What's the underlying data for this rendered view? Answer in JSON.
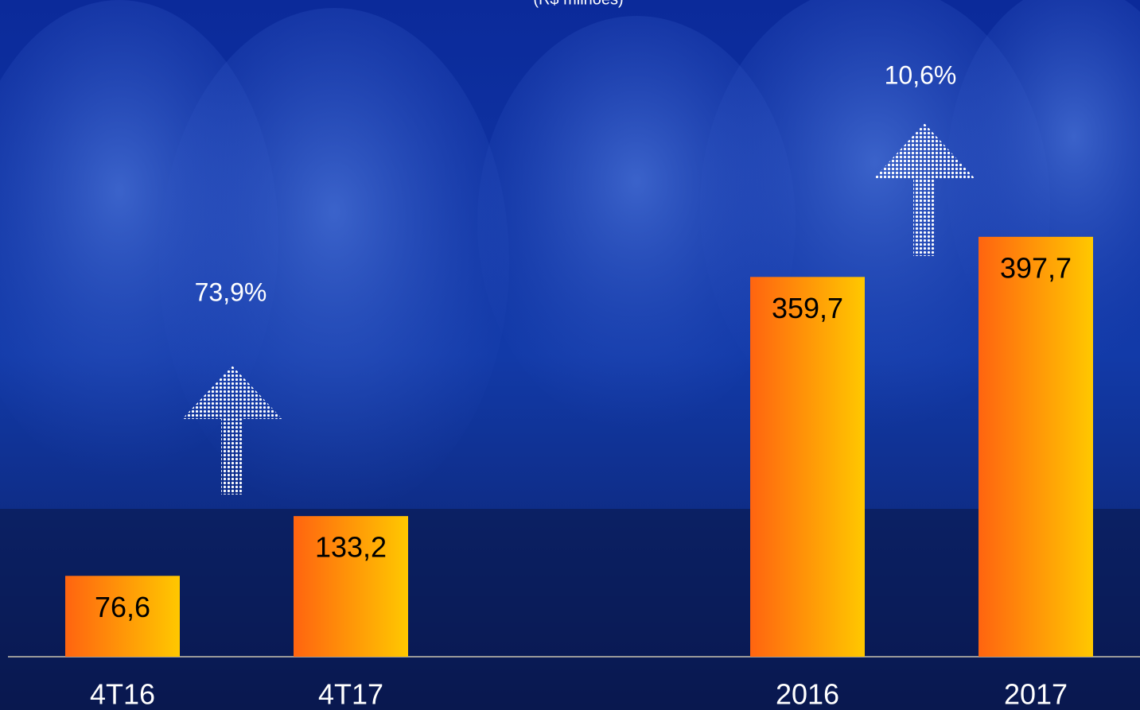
{
  "chart_data": {
    "type": "bar",
    "subtitle": "(R$ milhões)",
    "categories": [
      "4T16",
      "4T17",
      null,
      "2016",
      "2017"
    ],
    "values": [
      76.6,
      133.2,
      null,
      359.7,
      397.7
    ],
    "value_labels": [
      "76,6",
      "133,2",
      null,
      "359,7",
      "397,7"
    ],
    "colors": [
      "#ff6410",
      "#ffc800"
    ],
    "annotations": [
      "73,9%",
      "10,6%"
    ]
  }
}
